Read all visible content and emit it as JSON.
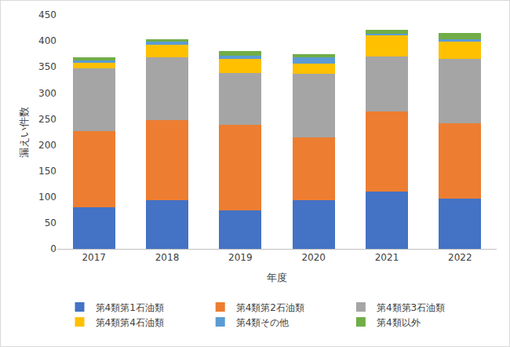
{
  "chart_data": {
    "type": "bar",
    "stacked": true,
    "grid": false,
    "legend": "bottom",
    "x_label": "年度",
    "y_label": "漏えい件数",
    "categories": [
      "2017",
      "2018",
      "2019",
      "2020",
      "2021",
      "2022"
    ],
    "ylim": [
      0,
      450
    ],
    "yticks": [
      0,
      50,
      100,
      150,
      200,
      250,
      300,
      350,
      400,
      450
    ],
    "series": [
      {
        "name": "第4類第1石油類",
        "color": "#4472c4",
        "values": [
          80,
          94,
          74,
          94,
          110,
          96
        ]
      },
      {
        "name": "第4類第2石油類",
        "color": "#ed7d31",
        "values": [
          147,
          153,
          164,
          121,
          155,
          146
        ]
      },
      {
        "name": "第4類第3石油類",
        "color": "#a5a5a5",
        "values": [
          121,
          121,
          100,
          121,
          105,
          124
        ]
      },
      {
        "name": "第4類第4石油類",
        "color": "#ffc000",
        "values": [
          10,
          24,
          27,
          21,
          40,
          32
        ]
      },
      {
        "name": "第4類その他",
        "color": "#5b9bd5",
        "values": [
          5,
          7,
          7,
          12,
          4,
          5
        ]
      },
      {
        "name": "第4類以外",
        "color": "#70ad47",
        "values": [
          6,
          4,
          8,
          6,
          8,
          13
        ]
      }
    ]
  }
}
